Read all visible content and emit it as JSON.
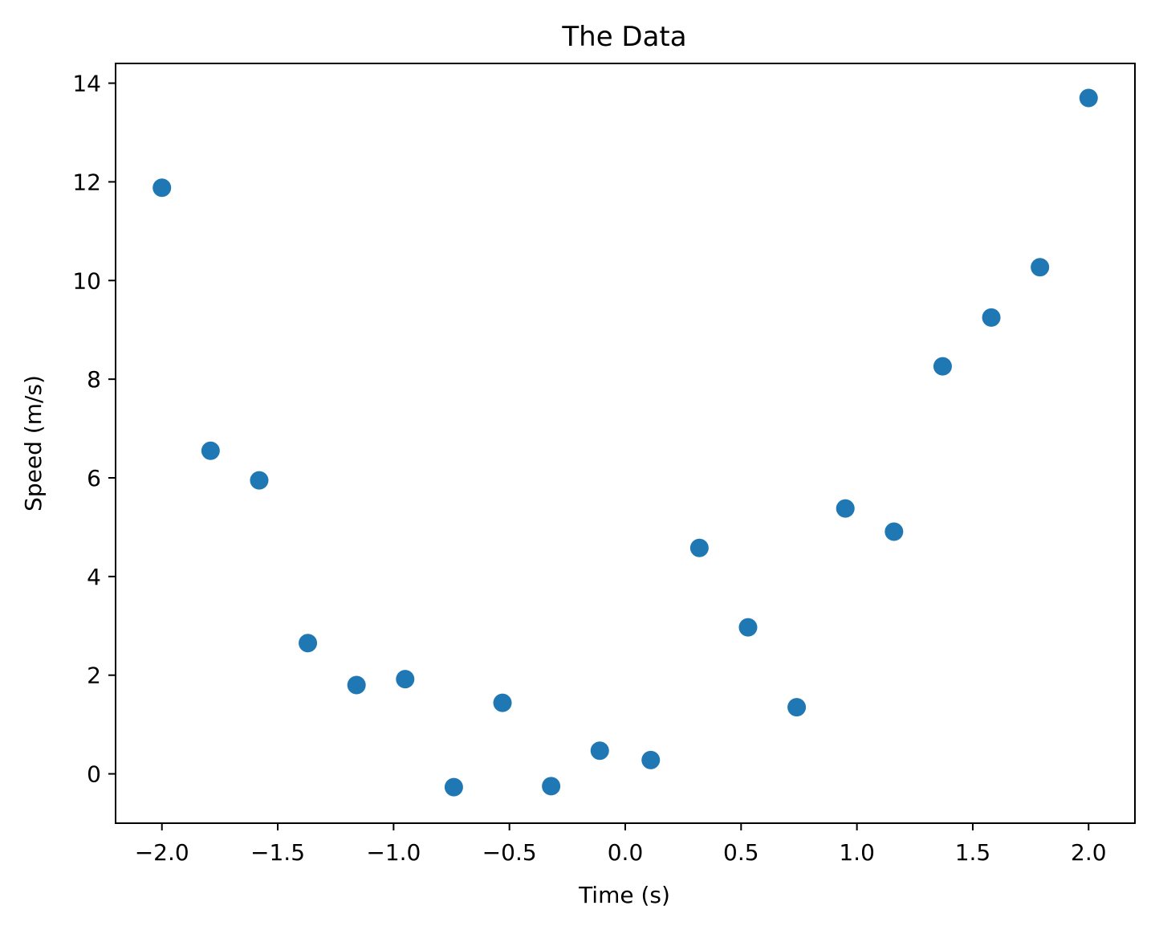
{
  "chart_data": {
    "type": "scatter",
    "title": "The Data",
    "xlabel": "Time (s)",
    "ylabel": "Speed (m/s)",
    "xlim": [
      -2.2,
      2.2
    ],
    "ylim": [
      -1.0,
      14.4
    ],
    "x_ticks": [
      -2.0,
      -1.5,
      -1.0,
      -0.5,
      0.0,
      0.5,
      1.0,
      1.5,
      2.0
    ],
    "x_tick_labels": [
      "−2.0",
      "−1.5",
      "−1.0",
      "−0.5",
      "0.0",
      "0.5",
      "1.0",
      "1.5",
      "2.0"
    ],
    "y_ticks": [
      0,
      2,
      4,
      6,
      8,
      10,
      12,
      14
    ],
    "y_tick_labels": [
      "0",
      "2",
      "4",
      "6",
      "8",
      "10",
      "12",
      "14"
    ],
    "grid": false,
    "marker_color": "#1f77b4",
    "series": [
      {
        "x": [
          -2.0,
          -1.79,
          -1.58,
          -1.37,
          -1.16,
          -0.95,
          -0.74,
          -0.53,
          -0.32,
          -0.11,
          0.11,
          0.32,
          0.53,
          0.74,
          0.95,
          1.16,
          1.37,
          1.58,
          1.79,
          2.0
        ],
        "y": [
          11.88,
          6.55,
          5.95,
          2.65,
          1.8,
          1.92,
          -0.27,
          1.44,
          -0.25,
          0.47,
          0.28,
          4.58,
          2.97,
          1.35,
          5.38,
          4.91,
          8.26,
          9.25,
          10.27,
          13.7
        ]
      }
    ]
  }
}
